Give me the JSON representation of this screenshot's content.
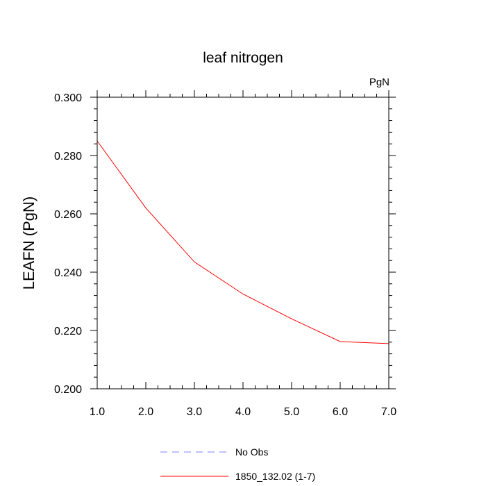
{
  "chart_data": {
    "type": "line",
    "title": "leaf nitrogen",
    "units_label": "PgN",
    "xlabel": "",
    "ylabel": "LEAFN  (PgN)",
    "xlim": [
      1.0,
      7.0
    ],
    "ylim": [
      0.2,
      0.3
    ],
    "x_ticks": [
      "1.0",
      "2.0",
      "3.0",
      "4.0",
      "5.0",
      "6.0",
      "7.0"
    ],
    "y_ticks": [
      "0.200",
      "0.220",
      "0.240",
      "0.260",
      "0.280",
      "0.300"
    ],
    "x": [
      1,
      2,
      3,
      4,
      5,
      6,
      7
    ],
    "series": [
      {
        "name": "1850_132.02 (1-7)",
        "color": "#ff0000",
        "dash": "solid",
        "values": [
          0.285,
          0.262,
          0.2435,
          0.2325,
          0.224,
          0.2162,
          0.2155
        ]
      }
    ],
    "legend": {
      "placement": "bottom-center",
      "entries": [
        {
          "label": "No Obs",
          "color": "#8080ff",
          "dash": "dashed"
        },
        {
          "label": "1850_132.02 (1-7)",
          "color": "#ff0000",
          "dash": "solid"
        }
      ]
    },
    "grid": false
  }
}
